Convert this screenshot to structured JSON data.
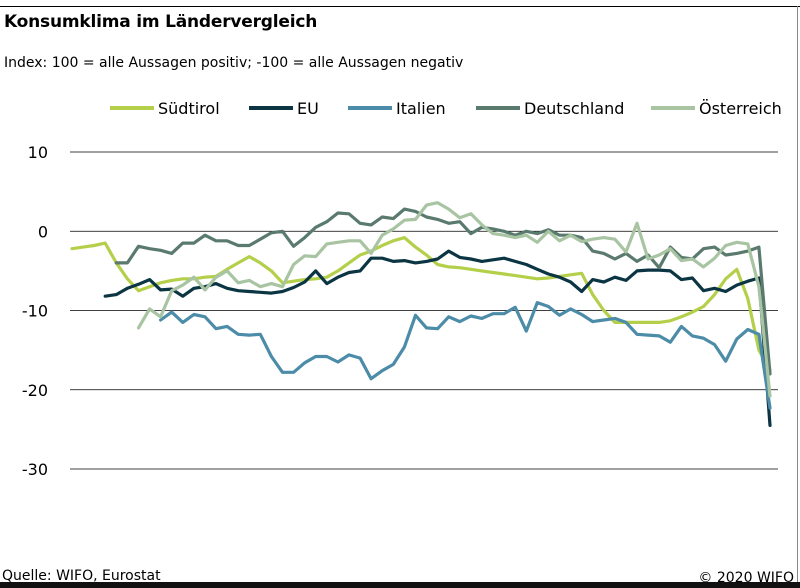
{
  "header": {
    "title": "Konsumklima im Ländervergleich",
    "subtitle": "Index: 100 = alle Aussagen positiv; -100 =  alle Aussagen negativ"
  },
  "footer": {
    "source": "Quelle: WIFO, Eurostat",
    "copyright": "© 2020 WIFO"
  },
  "chart_data": {
    "type": "line",
    "title": "Konsumklima im Ländervergleich",
    "subtitle": "Index: 100 = alle Aussagen positiv; -100 =  alle Aussagen negativ",
    "xlabel": "",
    "ylabel": "",
    "ylim": [
      -30,
      10
    ],
    "yticks": [
      10,
      0,
      -10,
      -20,
      -30
    ],
    "grid": true,
    "legend": "top",
    "series": [
      {
        "name": "Südtirol",
        "color": "#b4cf4a",
        "values": [
          -2.2,
          -2.0,
          -1.8,
          -1.5,
          -4.0,
          -6.0,
          -7.5,
          -7.0,
          -6.5,
          -6.2,
          -6.0,
          -6.0,
          -5.8,
          -5.7,
          -4.8,
          -4.0,
          -3.2,
          -4.0,
          -5.0,
          -6.5,
          -6.3,
          -6.1,
          -6.0,
          -5.8,
          -5.0,
          -4.0,
          -3.0,
          -2.5,
          -1.8,
          -1.2,
          -0.8,
          -2.0,
          -3.0,
          -4.2,
          -4.5,
          -4.6,
          -4.8,
          -5.0,
          -5.2,
          -5.4,
          -5.6,
          -5.8,
          -6.0,
          -5.9,
          -5.7,
          -5.5,
          -5.3,
          -8.0,
          -10.0,
          -11.5,
          -11.5,
          -11.5,
          -11.5,
          -11.5,
          -11.3,
          -10.8,
          -10.2,
          -9.5,
          -8.0,
          -6.0,
          -4.8,
          -8.5,
          -15.0,
          -17.5
        ]
      },
      {
        "name": "EU",
        "color": "#0b3543",
        "values": [
          -8.2,
          -8.0,
          -7.2,
          -6.7,
          -6.1,
          -7.4,
          -7.3,
          -8.2,
          -7.2,
          -7.0,
          -6.6,
          -7.2,
          -7.5,
          -7.6,
          -7.7,
          -7.8,
          -7.6,
          -7.1,
          -6.4,
          -5.0,
          -6.6,
          -5.8,
          -5.2,
          -5.0,
          -3.4,
          -3.4,
          -3.8,
          -3.7,
          -4.0,
          -3.8,
          -3.5,
          -2.5,
          -3.3,
          -3.5,
          -3.8,
          -3.6,
          -3.4,
          -3.8,
          -4.2,
          -4.8,
          -5.4,
          -5.8,
          -6.4,
          -7.6,
          -6.1,
          -6.4,
          -5.8,
          -6.2,
          -5.0,
          -4.9,
          -4.9,
          -5.0,
          -6.1,
          -5.9,
          -7.5,
          -7.2,
          -7.6,
          -6.8,
          -6.3,
          -5.9,
          -24.5
        ]
      },
      {
        "name": "Italien",
        "color": "#4c8ca8",
        "values": [
          -11.2,
          -10.2,
          -11.5,
          -10.5,
          -10.8,
          -12.3,
          -12.0,
          -13.0,
          -13.1,
          -13.0,
          -15.8,
          -17.8,
          -17.8,
          -16.6,
          -15.8,
          -15.8,
          -16.5,
          -15.6,
          -16.0,
          -18.6,
          -17.6,
          -16.8,
          -14.6,
          -10.6,
          -12.2,
          -12.3,
          -10.8,
          -11.4,
          -10.7,
          -11.0,
          -10.4,
          -10.4,
          -9.6,
          -12.6,
          -9.0,
          -9.5,
          -10.6,
          -9.8,
          -10.5,
          -11.4,
          -11.2,
          -11.0,
          -11.5,
          -13.0,
          -13.1,
          -13.2,
          -14.0,
          -12.0,
          -13.2,
          -13.5,
          -14.3,
          -16.4,
          -13.6,
          -12.4,
          -13.0,
          -22.3
        ]
      },
      {
        "name": "Deutschland",
        "color": "#5a7a6e",
        "values": [
          -4.0,
          -4.0,
          -1.9,
          -2.2,
          -2.4,
          -2.8,
          -1.5,
          -1.5,
          -0.5,
          -1.2,
          -1.2,
          -1.8,
          -1.8,
          -1.0,
          -0.2,
          0.0,
          -1.9,
          -0.8,
          0.5,
          1.2,
          2.3,
          2.2,
          1.0,
          0.8,
          1.8,
          1.6,
          2.8,
          2.5,
          1.8,
          1.5,
          1.0,
          1.2,
          -0.3,
          0.5,
          0.3,
          0.0,
          -0.5,
          0.0,
          -0.3,
          0.2,
          -0.5,
          -0.5,
          -0.8,
          -2.5,
          -2.8,
          -3.5,
          -2.8,
          -3.8,
          -3.0,
          -4.6,
          -2.0,
          -3.3,
          -3.5,
          -2.2,
          -2.0,
          -3.0,
          -2.8,
          -2.5,
          -2.0,
          -18.0
        ]
      },
      {
        "name": "Österreich",
        "color": "#a8c4a2",
        "values": [
          -12.2,
          -9.8,
          -10.8,
          -7.5,
          -6.8,
          -5.8,
          -7.4,
          -5.8,
          -5.0,
          -6.5,
          -6.2,
          -7.0,
          -6.6,
          -7.0,
          -4.2,
          -3.1,
          -3.2,
          -1.6,
          -1.4,
          -1.2,
          -1.2,
          -2.8,
          -0.5,
          0.3,
          1.4,
          1.5,
          3.3,
          3.6,
          2.8,
          1.7,
          2.2,
          0.8,
          -0.3,
          -0.5,
          -0.8,
          -0.5,
          -1.4,
          0.0,
          -1.2,
          -0.5,
          -1.3,
          -1.0,
          -0.8,
          -1.0,
          -2.6,
          1.0,
          -3.5,
          -3.0,
          -2.2,
          -3.7,
          -3.5,
          -4.5,
          -3.4,
          -1.8,
          -1.4,
          -1.6,
          -7.0,
          -20.8
        ]
      }
    ]
  }
}
